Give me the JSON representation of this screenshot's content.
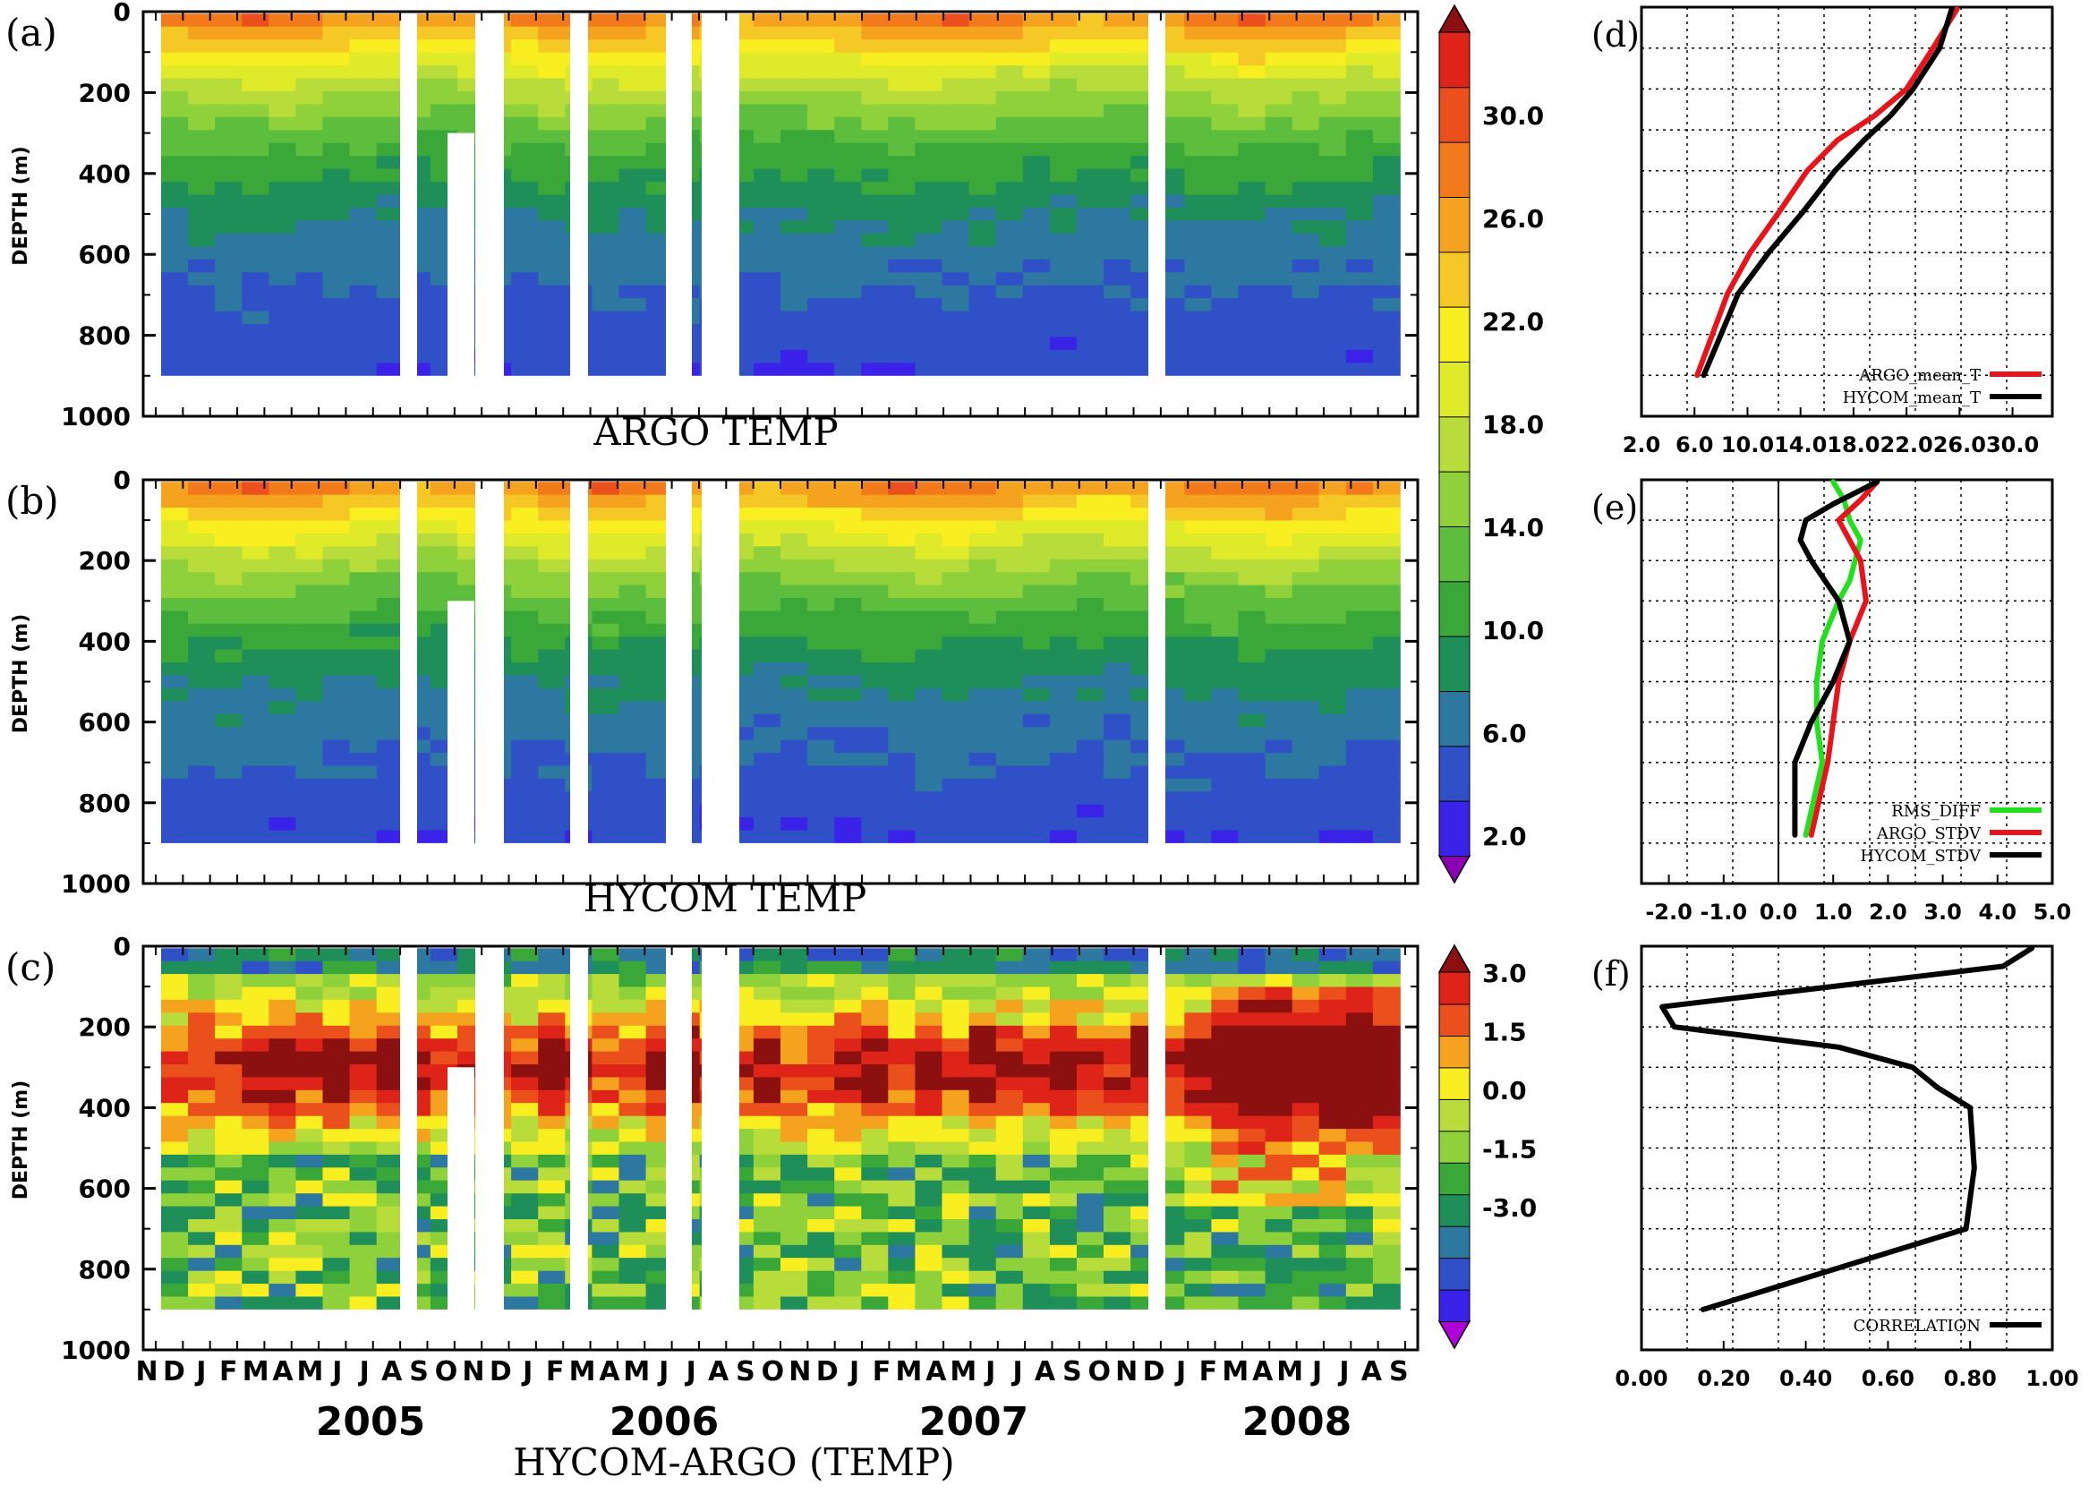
{
  "chart_data": [
    {
      "panel_label": "(a)",
      "type": "heatmap",
      "title": "ARGO TEMP",
      "ylabel": "DEPTH (m)",
      "ylim": [
        1000,
        0
      ],
      "yticks": [
        "0",
        "200",
        "400",
        "600",
        "800",
        "1000"
      ],
      "colorbar": "temp"
    },
    {
      "panel_label": "(b)",
      "type": "heatmap",
      "title": "HYCOM TEMP",
      "ylabel": "DEPTH (m)",
      "ylim": [
        1000,
        0
      ],
      "yticks": [
        "0",
        "200",
        "400",
        "600",
        "800",
        "1000"
      ],
      "colorbar": "temp"
    },
    {
      "panel_label": "(c)",
      "type": "heatmap",
      "title": "HYCOM-ARGO (TEMP)",
      "ylabel": "DEPTH (m)",
      "ylim": [
        1000,
        0
      ],
      "yticks": [
        "0",
        "200",
        "400",
        "600",
        "800",
        "1000"
      ],
      "colorbar": "diff",
      "month_labels": [
        "N",
        "D",
        "J",
        "F",
        "M",
        "A",
        "M",
        "J",
        "J",
        "A",
        "S",
        "O",
        "N",
        "D",
        "J",
        "F",
        "M",
        "A",
        "M",
        "J",
        "J",
        "A",
        "S",
        "O",
        "N",
        "D",
        "J",
        "F",
        "M",
        "A",
        "M",
        "J",
        "J",
        "A",
        "S",
        "O",
        "N",
        "D",
        "J",
        "F",
        "M",
        "A",
        "M",
        "J",
        "J",
        "A",
        "S"
      ],
      "year_labels": [
        "2005",
        "2006",
        "2007",
        "2008"
      ]
    },
    {
      "panel_label": "(d)",
      "type": "line",
      "xticks": [
        "2.0",
        "6.0",
        "10.0",
        "14.0",
        "18.0",
        "22.0",
        "26.0",
        "30.0"
      ],
      "xlim": [
        2,
        33
      ],
      "ylim": [
        1000,
        0
      ],
      "legend_position": "bottom-right",
      "series": [
        {
          "name": "ARGO_mean_T",
          "color": "#e8141c",
          "x": [
            25.8,
            24.0,
            22.0,
            19.6,
            16.8,
            14.5,
            12.4,
            10.2,
            8.5,
            6.2
          ],
          "y": [
            5,
            100,
            200,
            265,
            325,
            400,
            500,
            600,
            700,
            900
          ]
        },
        {
          "name": "HYCOM_mean_T",
          "color": "#000000",
          "x": [
            25.4,
            24.5,
            22.5,
            20.8,
            18.8,
            16.6,
            14.2,
            11.6,
            9.3,
            6.7
          ],
          "y": [
            5,
            100,
            200,
            265,
            325,
            400,
            500,
            600,
            700,
            900
          ]
        }
      ]
    },
    {
      "panel_label": "(e)",
      "type": "line",
      "xticks": [
        "-2.0",
        "-1.0",
        "0.0",
        "1.0",
        "2.0",
        "3.0",
        "4.0",
        "5.0"
      ],
      "xlim": [
        -2.5,
        5
      ],
      "ylim": [
        1000,
        0
      ],
      "legend_position": "bottom-right",
      "series": [
        {
          "name": "RMS_DIFF",
          "color": "#22e01e",
          "x": [
            1.0,
            1.2,
            1.3,
            1.5,
            1.3,
            1.1,
            0.8,
            0.7,
            0.7,
            0.8,
            0.5
          ],
          "y": [
            5,
            50,
            100,
            150,
            250,
            300,
            400,
            500,
            600,
            700,
            880
          ]
        },
        {
          "name": "ARGO_STDV",
          "color": "#e8141c",
          "x": [
            1.8,
            1.5,
            1.1,
            1.3,
            1.5,
            1.6,
            1.3,
            1.1,
            1.0,
            0.9,
            0.6
          ],
          "y": [
            5,
            50,
            100,
            150,
            200,
            300,
            400,
            500,
            600,
            700,
            880
          ]
        },
        {
          "name": "HYCOM_STDV",
          "color": "#000000",
          "x": [
            1.8,
            1.0,
            0.5,
            0.4,
            0.6,
            1.1,
            1.3,
            1.0,
            0.6,
            0.3,
            0.3
          ],
          "y": [
            5,
            60,
            100,
            150,
            200,
            300,
            400,
            500,
            600,
            700,
            880
          ]
        }
      ]
    },
    {
      "panel_label": "(f)",
      "type": "line",
      "xticks": [
        "0.00",
        "0.20",
        "0.40",
        "0.60",
        "0.80",
        "1.00"
      ],
      "xlim": [
        0,
        1
      ],
      "ylim": [
        1000,
        0
      ],
      "legend_position": "bottom-right",
      "series": [
        {
          "name": "CORRELATION",
          "color": "#000000",
          "x": [
            0.95,
            0.88,
            0.05,
            0.08,
            0.48,
            0.66,
            0.72,
            0.8,
            0.81,
            0.79,
            0.15
          ],
          "y": [
            5,
            50,
            150,
            200,
            250,
            300,
            350,
            400,
            550,
            700,
            900
          ]
        }
      ]
    }
  ],
  "colorbars": {
    "temp": {
      "min": 2,
      "max": 34,
      "labels": [
        "30.0",
        "26.0",
        "22.0",
        "18.0",
        "14.0",
        "10.0",
        "6.0",
        "2.0"
      ],
      "colors": [
        "#8b00b3",
        "#3a22e8",
        "#3050c8",
        "#2c78a0",
        "#1f8f5a",
        "#3aa838",
        "#5cbe3c",
        "#8ed13a",
        "#b8dc3a",
        "#dfea28",
        "#f8ee20",
        "#f6c826",
        "#f5a21e",
        "#f27a1a",
        "#ea4f1c",
        "#de2418",
        "#8c1010"
      ]
    },
    "diff": {
      "min": -3,
      "max": 3,
      "labels": [
        "3.0",
        "1.5",
        "0.0",
        "-1.5",
        "-3.0"
      ],
      "colors": [
        "#b000d8",
        "#3a22e8",
        "#3050c8",
        "#2c78a0",
        "#1f8f5a",
        "#3aa838",
        "#8ed13a",
        "#b8dc3a",
        "#f8ee20",
        "#f5a21e",
        "#ea4f1c",
        "#de2418",
        "#8c1010"
      ]
    }
  }
}
